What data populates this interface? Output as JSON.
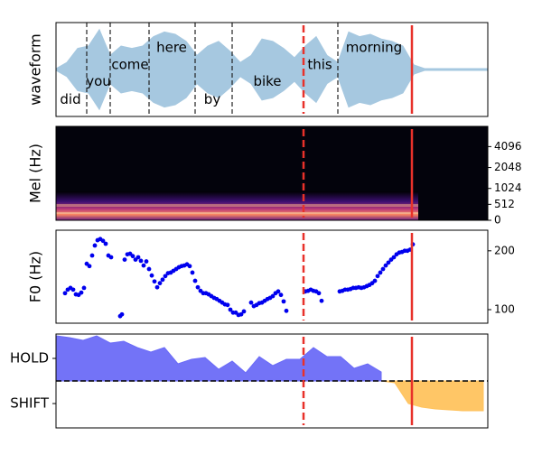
{
  "chart_data": [
    {
      "type": "waveform",
      "ylabel": "waveform",
      "xlim": [
        0,
        478
      ],
      "ylim": [
        -1,
        1
      ],
      "color": "#a6c8e0",
      "x": [
        0,
        12,
        24,
        36,
        48,
        60,
        72,
        84,
        96,
        108,
        120,
        132,
        144,
        156,
        168,
        180,
        192,
        204,
        216,
        228,
        240,
        252,
        264,
        276,
        288,
        300,
        312,
        324,
        336,
        348,
        360,
        372,
        384,
        396,
        408,
        420,
        432,
        444,
        456,
        468,
        478
      ],
      "values": [
        0.02,
        0.15,
        0.45,
        0.5,
        0.85,
        0.3,
        0.5,
        0.45,
        0.5,
        0.7,
        0.8,
        0.75,
        0.6,
        0.3,
        0.5,
        0.6,
        0.4,
        0.15,
        0.3,
        0.65,
        0.6,
        0.45,
        0.25,
        0.5,
        0.7,
        0.3,
        0.15,
        0.8,
        0.7,
        0.75,
        0.65,
        0.6,
        0.5,
        0.1,
        0.02,
        0.02,
        0.02,
        0.02,
        0.02,
        0.02,
        0.02
      ],
      "words": [
        {
          "text": "did",
          "x": 16
        },
        {
          "text": "you",
          "x": 47
        },
        {
          "text": "come",
          "x": 82
        },
        {
          "text": "here",
          "x": 128
        },
        {
          "text": "by",
          "x": 173
        },
        {
          "text": "bike",
          "x": 234
        },
        {
          "text": "this",
          "x": 292
        },
        {
          "text": "morning",
          "x": 352
        }
      ],
      "boundaries": [
        34,
        60,
        103,
        154,
        195,
        312
      ],
      "markers": [
        {
          "x": 274,
          "style": "dashed",
          "color": "#e8312a"
        },
        {
          "x": 394,
          "style": "solid",
          "color": "#e8312a"
        }
      ]
    },
    {
      "type": "spectrogram",
      "ylabel": "Mel (Hz)",
      "xlim": [
        0,
        478
      ],
      "yscale": "mel",
      "ylim": [
        0,
        8000
      ],
      "yticks": [
        0,
        512,
        1024,
        2048,
        4096
      ],
      "markers": [
        {
          "x": 274,
          "style": "dashed",
          "color": "#e8312a"
        },
        {
          "x": 394,
          "style": "solid",
          "color": "#e8312a"
        }
      ]
    },
    {
      "type": "scatter",
      "ylabel": "F0 (Hz)",
      "xlim": [
        0,
        478
      ],
      "ylim": [
        77,
        235
      ],
      "yticks": [
        100,
        200
      ],
      "color": "#0000ee",
      "x": [
        10,
        13,
        16,
        19,
        22,
        25,
        28,
        31,
        34,
        37,
        40,
        43,
        46,
        49,
        52,
        55,
        58,
        61,
        71,
        73,
        76,
        79,
        82,
        85,
        88,
        91,
        94,
        97,
        100,
        103,
        106,
        109,
        112,
        115,
        118,
        121,
        124,
        127,
        130,
        133,
        136,
        139,
        142,
        145,
        148,
        151,
        154,
        157,
        160,
        163,
        166,
        169,
        172,
        175,
        178,
        181,
        184,
        187,
        190,
        193,
        196,
        199,
        202,
        205,
        208,
        216,
        219,
        222,
        225,
        228,
        231,
        234,
        237,
        240,
        243,
        246,
        249,
        252,
        255,
        276,
        279,
        282,
        285,
        288,
        291,
        294,
        314,
        317,
        320,
        323,
        326,
        329,
        332,
        335,
        338,
        341,
        344,
        347,
        350,
        353,
        356,
        359,
        362,
        365,
        368,
        371,
        374,
        377,
        380,
        383,
        386,
        389,
        392,
        395
      ],
      "values": [
        128,
        134,
        137,
        134,
        126,
        125,
        129,
        137,
        178,
        174,
        192,
        209,
        218,
        220,
        217,
        212,
        192,
        189,
        89,
        92,
        185,
        194,
        195,
        191,
        185,
        189,
        183,
        175,
        182,
        169,
        158,
        148,
        138,
        145,
        151,
        157,
        162,
        163,
        166,
        169,
        172,
        174,
        175,
        177,
        174,
        163,
        149,
        138,
        132,
        128,
        128,
        126,
        123,
        120,
        118,
        115,
        112,
        109,
        108,
        100,
        95,
        95,
        91,
        92,
        97,
        112,
        106,
        108,
        111,
        112,
        115,
        118,
        120,
        123,
        128,
        131,
        125,
        114,
        98,
        131,
        132,
        134,
        132,
        131,
        128,
        115,
        131,
        132,
        134,
        134,
        135,
        137,
        137,
        138,
        137,
        138,
        140,
        142,
        145,
        149,
        157,
        163,
        169,
        175,
        180,
        185,
        189,
        194,
        197,
        198,
        200,
        200,
        202,
        211
      ],
      "markers": [
        {
          "x": 274,
          "style": "dashed",
          "color": "#e8312a"
        },
        {
          "x": 394,
          "style": "solid",
          "color": "#e8312a"
        }
      ]
    },
    {
      "type": "area",
      "xlim": [
        0,
        478
      ],
      "ylim": [
        -1.04,
        1.04
      ],
      "yticks": [
        {
          "value": 0.5,
          "label": "HOLD"
        },
        {
          "value": -0.5,
          "label": "SHIFT"
        }
      ],
      "x": [
        0,
        15,
        30,
        45,
        60,
        75,
        90,
        105,
        120,
        135,
        150,
        165,
        180,
        195,
        210,
        225,
        240,
        255,
        270,
        285,
        300,
        315,
        330,
        345,
        360,
        375,
        390,
        405,
        420,
        435,
        450,
        465,
        473
      ],
      "series": [
        {
          "color": "#6b6bf7",
          "values": [
            1.0,
            0.96,
            0.9,
            1.0,
            0.84,
            0.88,
            0.74,
            0.64,
            0.74,
            0.38,
            0.48,
            0.52,
            0.26,
            0.44,
            0.18,
            0.54,
            0.34,
            0.48,
            0.48,
            0.74,
            0.54,
            0.54,
            0.28,
            0.38,
            0.2,
            null,
            null,
            null,
            null,
            null,
            null,
            null,
            null
          ]
        },
        {
          "color": "#ffc35e",
          "values": [
            null,
            null,
            null,
            null,
            null,
            null,
            null,
            null,
            null,
            null,
            null,
            null,
            null,
            null,
            null,
            null,
            null,
            null,
            null,
            null,
            null,
            null,
            null,
            null,
            0,
            -0.04,
            -0.5,
            -0.58,
            -0.62,
            -0.64,
            -0.66,
            -0.66,
            -0.66
          ]
        }
      ],
      "markers": [
        {
          "x": 274,
          "style": "dashed",
          "color": "#e8312a"
        },
        {
          "x": 394,
          "style": "solid",
          "color": "#e8312a"
        }
      ]
    }
  ]
}
